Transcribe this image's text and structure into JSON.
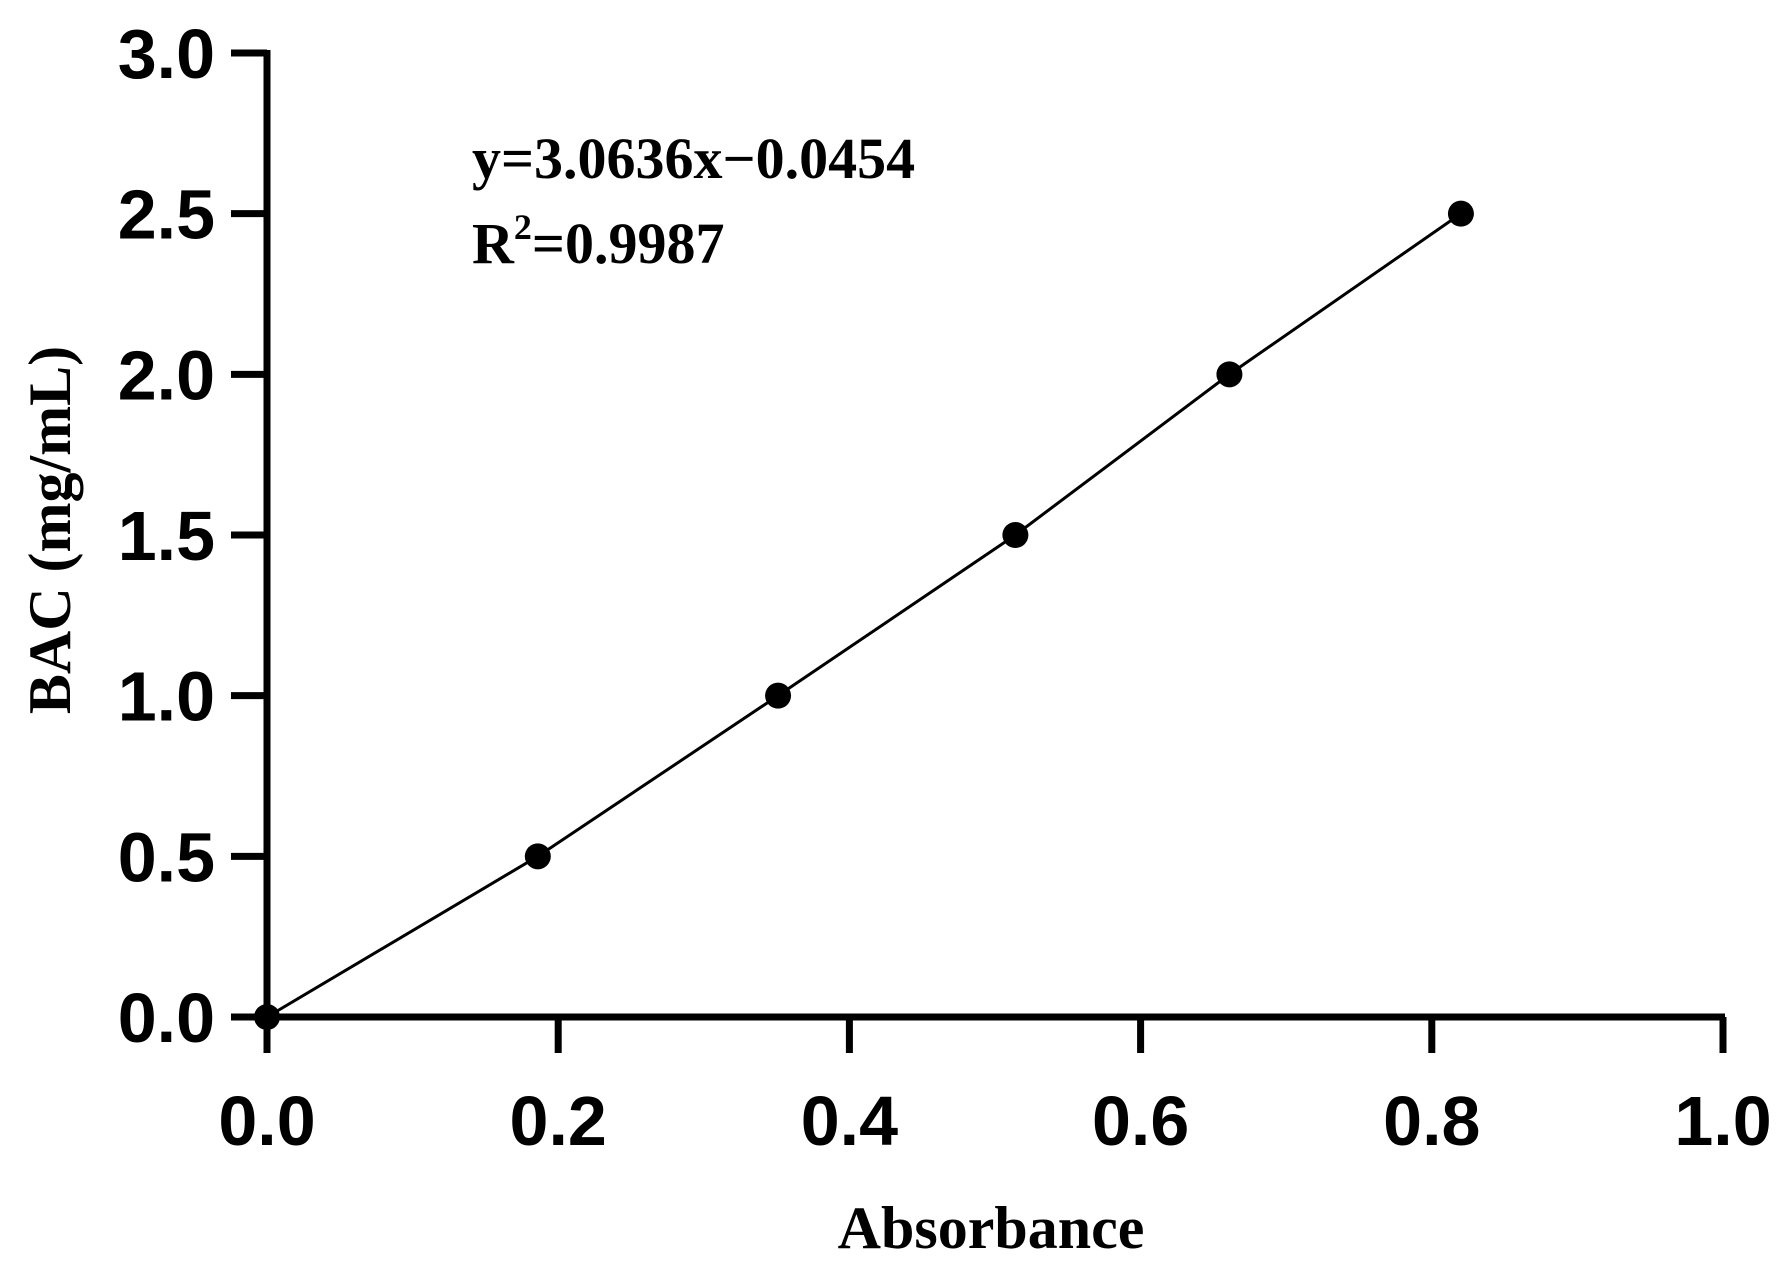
{
  "chart_data": {
    "type": "scatter",
    "xlabel": "Absorbance",
    "ylabel": "BAC (mg/mL)",
    "xlim": [
      0.0,
      1.0
    ],
    "ylim": [
      0.0,
      3.0
    ],
    "x_ticks": [
      "0.0",
      "0.2",
      "0.4",
      "0.6",
      "0.8",
      "1.0"
    ],
    "y_ticks": [
      "0.0",
      "0.5",
      "1.0",
      "1.5",
      "2.0",
      "2.5",
      "3.0"
    ],
    "grid": false,
    "series": [
      {
        "points": [
          {
            "x": 0.0,
            "y": 0.0
          },
          {
            "x": 0.186,
            "y": 0.5
          },
          {
            "x": 0.351,
            "y": 1.0
          },
          {
            "x": 0.514,
            "y": 1.5
          },
          {
            "x": 0.661,
            "y": 2.0
          },
          {
            "x": 0.82,
            "y": 2.5
          }
        ],
        "trendline": true
      }
    ],
    "annotations": {
      "equation": "y=3.0636x−0.0454",
      "r2_prefix": "R",
      "r2_sup": "2",
      "r2_value": "=0.9987"
    },
    "colors": {
      "marker": "#000000",
      "line": "#000000",
      "axis": "#000000"
    }
  }
}
